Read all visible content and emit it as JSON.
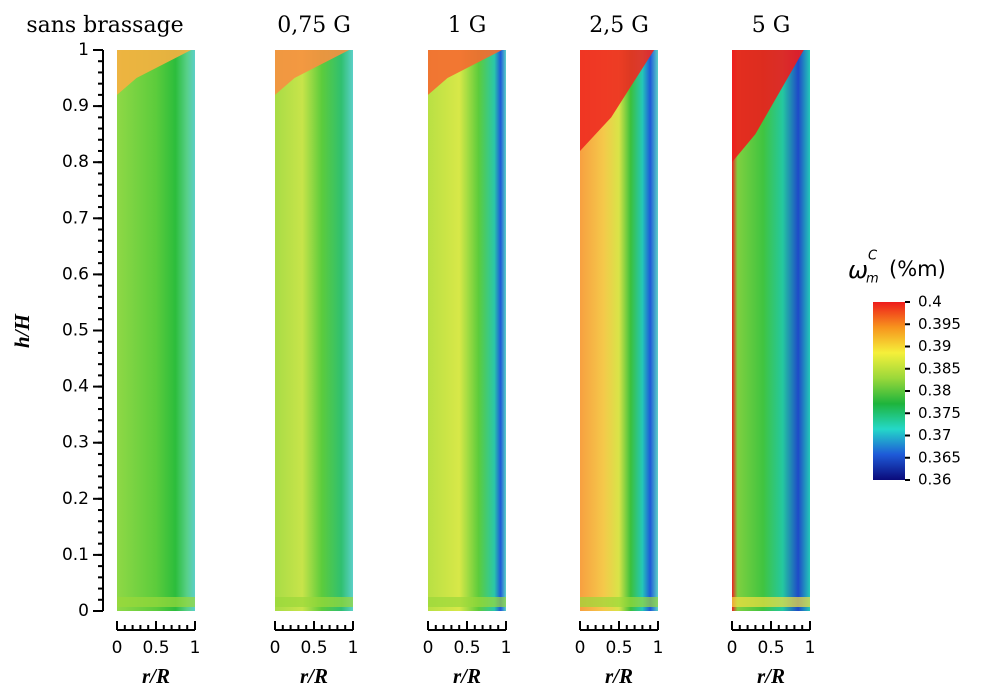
{
  "chart_data": {
    "type": "contour",
    "panels": [
      "sans brassage",
      "0,75 G",
      "1 G",
      "2,5 G",
      "5 G"
    ],
    "ylabel": "h/H",
    "xlabel": "r/R",
    "ylim": [
      0,
      1
    ],
    "yticks": [
      0,
      0.1,
      0.2,
      0.3,
      0.4,
      0.5,
      0.6,
      0.7,
      0.8,
      0.9,
      1
    ],
    "xlim": [
      0,
      1
    ],
    "xticks": [
      0,
      0.5,
      1
    ],
    "colorbar": {
      "symbol": "ω",
      "sub": "m",
      "sup": "C",
      "unit": "(%m)",
      "lim": [
        0.36,
        0.4
      ],
      "ticks": [
        0.4,
        0.395,
        0.39,
        0.385,
        0.38,
        0.375,
        0.37,
        0.365,
        0.36
      ],
      "colors": [
        "#ee1c1c",
        "#f7941d",
        "#f5f03a",
        "#9ad83a",
        "#1eb43c",
        "#24d8c8",
        "#1e5ad8",
        "#0a0a7a"
      ]
    }
  }
}
